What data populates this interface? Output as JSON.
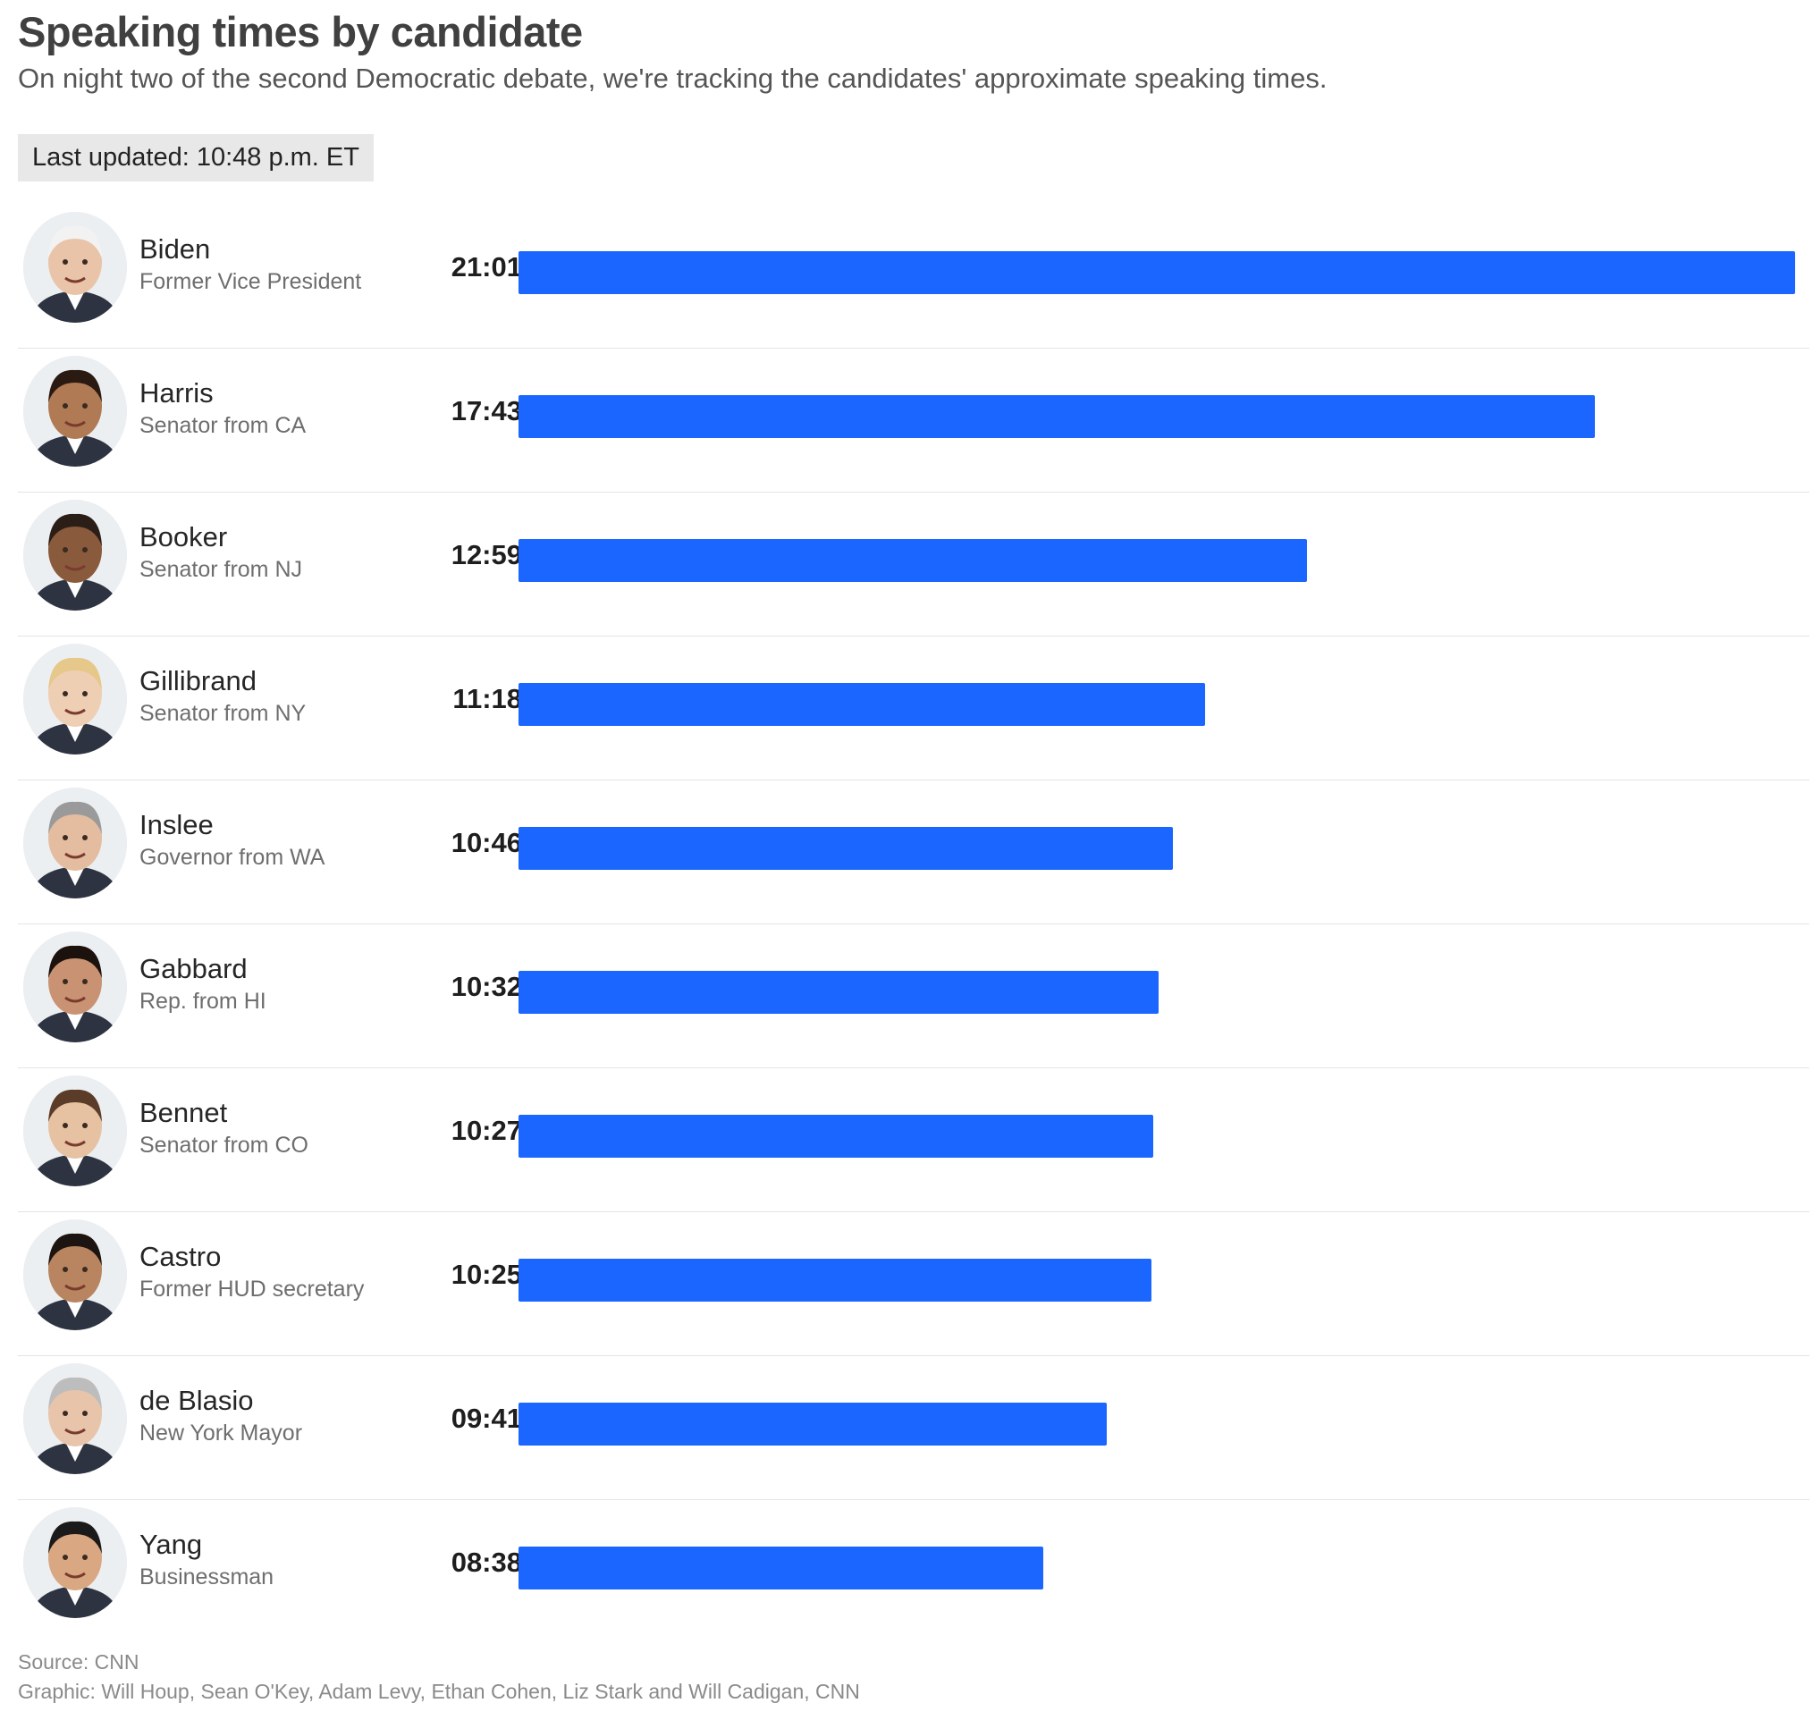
{
  "chart_data": {
    "type": "bar",
    "orientation": "horizontal",
    "title": "Speaking times by candidate",
    "subtitle": "On night two of the second Democratic debate, we're tracking the candidates' approximate speaking times.",
    "last_updated": "Last updated: 10:48 p.m. ET",
    "bar_color": "#1a66ff",
    "candidates": [
      {
        "name": "Biden",
        "role": "Former Vice President",
        "time_label": "21:01",
        "seconds": 1261
      },
      {
        "name": "Harris",
        "role": "Senator from CA",
        "time_label": "17:43",
        "seconds": 1063
      },
      {
        "name": "Booker",
        "role": "Senator from NJ",
        "time_label": "12:59",
        "seconds": 779
      },
      {
        "name": "Gillibrand",
        "role": "Senator from NY",
        "time_label": "11:18",
        "seconds": 678
      },
      {
        "name": "Inslee",
        "role": "Governor from WA",
        "time_label": "10:46",
        "seconds": 646
      },
      {
        "name": "Gabbard",
        "role": "Rep. from HI",
        "time_label": "10:32",
        "seconds": 632
      },
      {
        "name": "Bennet",
        "role": "Senator from CO",
        "time_label": "10:27",
        "seconds": 627
      },
      {
        "name": "Castro",
        "role": "Former HUD secretary",
        "time_label": "10:25",
        "seconds": 625
      },
      {
        "name": "de Blasio",
        "role": "New York Mayor",
        "time_label": "09:41",
        "seconds": 581
      },
      {
        "name": "Yang",
        "role": "Businessman",
        "time_label": "08:38",
        "seconds": 518
      }
    ],
    "xlim": [
      0,
      1261
    ],
    "grid": false,
    "legend": "none",
    "source": "Source: CNN",
    "credit": "Graphic: Will Houp, Sean O'Key, Adam Levy, Ethan Cohen, Liz Stark and Will Cadigan, CNN"
  }
}
